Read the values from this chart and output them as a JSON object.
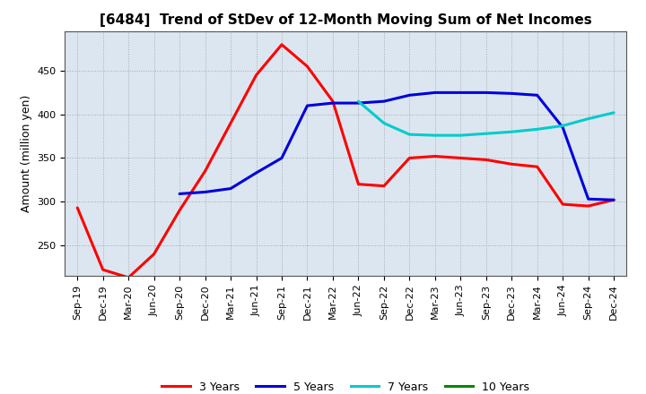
{
  "title": "[6484]  Trend of StDev of 12-Month Moving Sum of Net Incomes",
  "ylabel": "Amount (million yen)",
  "background_color": "#ffffff",
  "plot_bg_color": "#dce6f0",
  "grid_color": "#999999",
  "x_labels": [
    "Sep-19",
    "Dec-19",
    "Mar-20",
    "Jun-20",
    "Sep-20",
    "Dec-20",
    "Mar-21",
    "Jun-21",
    "Sep-21",
    "Dec-21",
    "Mar-22",
    "Jun-22",
    "Sep-22",
    "Dec-22",
    "Mar-23",
    "Jun-23",
    "Sep-23",
    "Dec-23",
    "Mar-24",
    "Jun-24",
    "Sep-24",
    "Dec-24"
  ],
  "series_order": [
    "3 Years",
    "5 Years",
    "7 Years",
    "10 Years"
  ],
  "series": {
    "3 Years": {
      "color": "#ff0000",
      "data": [
        293,
        222,
        213,
        240,
        290,
        335,
        390,
        445,
        480,
        455,
        415,
        320,
        318,
        350,
        352,
        350,
        348,
        343,
        340,
        297,
        295,
        302
      ]
    },
    "5 Years": {
      "color": "#0000dd",
      "data": [
        null,
        null,
        null,
        null,
        309,
        311,
        315,
        333,
        350,
        410,
        413,
        413,
        415,
        422,
        425,
        425,
        425,
        424,
        422,
        385,
        303,
        302
      ]
    },
    "7 Years": {
      "color": "#00cccc",
      "data": [
        null,
        null,
        null,
        null,
        null,
        null,
        null,
        null,
        null,
        null,
        null,
        415,
        390,
        377,
        376,
        376,
        378,
        380,
        383,
        387,
        395,
        402
      ]
    },
    "10 Years": {
      "color": "#008800",
      "data": [
        null,
        null,
        null,
        null,
        null,
        null,
        null,
        null,
        null,
        null,
        null,
        null,
        null,
        null,
        null,
        null,
        null,
        null,
        null,
        null,
        null,
        null
      ]
    }
  },
  "ylim": [
    215,
    495
  ],
  "yticks": [
    250,
    300,
    350,
    400,
    450
  ],
  "legend_items": [
    "3 Years",
    "5 Years",
    "7 Years",
    "10 Years"
  ],
  "legend_colors": [
    "#ff0000",
    "#0000dd",
    "#00cccc",
    "#008800"
  ],
  "title_fontsize": 11,
  "axis_label_fontsize": 9,
  "tick_fontsize": 8,
  "legend_fontsize": 9,
  "linewidth": 2.2
}
